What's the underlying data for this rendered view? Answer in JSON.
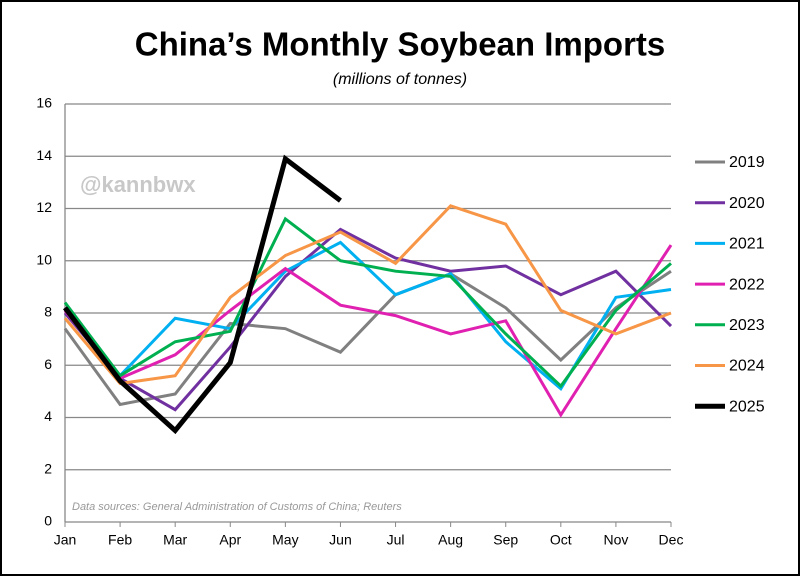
{
  "chart_data": {
    "type": "line",
    "title": "China’s Monthly Soybean Imports",
    "subtitle": "(millions of tonnes)",
    "watermark": "@kannbwx",
    "source": "Data sources: General Administration of Customs of China; Reuters",
    "categories": [
      "Jan",
      "Feb",
      "Mar",
      "Apr",
      "May",
      "Jun",
      "Jul",
      "Aug",
      "Sep",
      "Oct",
      "Nov",
      "Dec"
    ],
    "ylim": [
      0,
      16
    ],
    "yticks": [
      0,
      2,
      4,
      6,
      8,
      10,
      12,
      14,
      16
    ],
    "grid": true,
    "legend": "right",
    "series": [
      {
        "name": "2019",
        "color": "#808080",
        "width": 3,
        "values": [
          7.4,
          4.5,
          4.9,
          7.6,
          7.4,
          6.5,
          8.7,
          9.5,
          8.2,
          6.2,
          8.2,
          9.6
        ]
      },
      {
        "name": "2020",
        "color": "#7030a0",
        "width": 3,
        "values": [
          8.0,
          5.5,
          4.3,
          6.7,
          9.4,
          11.2,
          10.1,
          9.6,
          9.8,
          8.7,
          9.6,
          7.5
        ]
      },
      {
        "name": "2021",
        "color": "#00b0f0",
        "width": 3,
        "values": [
          8.2,
          5.6,
          7.8,
          7.4,
          9.6,
          10.7,
          8.7,
          9.5,
          6.9,
          5.1,
          8.6,
          8.9
        ]
      },
      {
        "name": "2022",
        "color": "#e020b0",
        "width": 3,
        "values": [
          8.1,
          5.5,
          6.4,
          8.1,
          9.7,
          8.3,
          7.9,
          7.2,
          7.7,
          4.1,
          7.4,
          10.6
        ]
      },
      {
        "name": "2023",
        "color": "#00b050",
        "width": 3,
        "values": [
          8.4,
          5.6,
          6.9,
          7.3,
          11.6,
          10.0,
          9.6,
          9.4,
          7.2,
          5.2,
          8.1,
          9.9
        ]
      },
      {
        "name": "2024",
        "color": "#f79646",
        "width": 3,
        "values": [
          7.8,
          5.3,
          5.6,
          8.6,
          10.2,
          11.1,
          9.9,
          12.1,
          11.4,
          8.1,
          7.2,
          8.0
        ]
      },
      {
        "name": "2025",
        "color": "#000000",
        "width": 5,
        "values": [
          8.2,
          5.4,
          3.5,
          6.1,
          13.9,
          12.3,
          null,
          null,
          null,
          null,
          null,
          null
        ]
      }
    ]
  }
}
